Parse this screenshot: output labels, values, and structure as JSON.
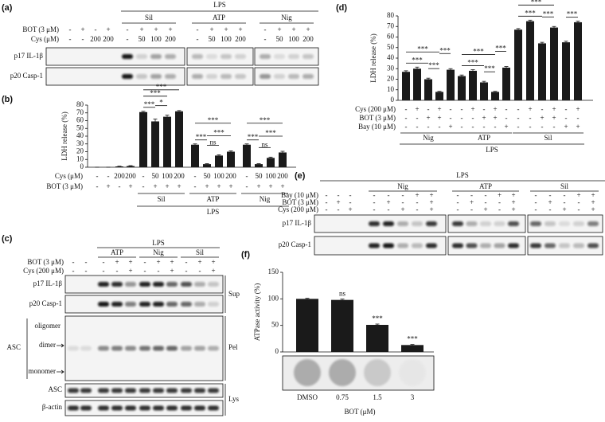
{
  "chart_data": [
    {
      "type": "bar",
      "panel": "(b)",
      "ylabel": "LDH release (%)",
      "color": "#1a1a1a",
      "values": [
        0,
        0,
        1,
        1.5,
        71,
        59,
        65,
        72,
        29,
        4,
        15,
        20,
        29,
        4,
        12,
        19
      ],
      "errors": [
        0,
        0,
        0.3,
        0.5,
        1,
        3,
        2,
        1,
        1,
        0.5,
        1,
        1,
        1,
        0.5,
        1,
        1.5
      ],
      "ylim": [
        0,
        80
      ],
      "yticks": [
        0,
        10,
        20,
        30,
        40,
        50,
        60,
        70,
        80
      ],
      "rows": [
        {
          "label": "Cys (μM)",
          "values": [
            "-",
            "-",
            "200",
            "200",
            "-",
            "50",
            "100",
            "200",
            "-",
            "50",
            "100",
            "200",
            "-",
            "50",
            "100",
            "200"
          ]
        },
        {
          "label": "BOT (3 μM)",
          "values": [
            "-",
            "+",
            "-",
            "+",
            "-",
            "+",
            "+",
            "+",
            "-",
            "+",
            "+",
            "+",
            "-",
            "+",
            "+",
            "+"
          ]
        }
      ],
      "groups": [
        {
          "label": "Sil",
          "from": 4,
          "to": 7
        },
        {
          "label": "ATP",
          "from": 8,
          "to": 11
        },
        {
          "label": "Nig",
          "from": 12,
          "to": 15
        }
      ],
      "super": {
        "label": "LPS",
        "from": 4,
        "to": 15
      },
      "significance": [
        {
          "label": "***",
          "from": 4,
          "to": 5
        },
        {
          "label": "*",
          "from": 5,
          "to": 6
        },
        {
          "label": "***",
          "from": 4,
          "to": 6
        },
        {
          "label": "***",
          "from": 4,
          "to": 7
        },
        {
          "label": "***",
          "from": 8,
          "to": 9
        },
        {
          "label": "ns",
          "from": 9,
          "to": 10
        },
        {
          "label": "***",
          "from": 9,
          "to": 11
        },
        {
          "label": "***",
          "from": 8,
          "to": 11
        },
        {
          "label": "***",
          "from": 12,
          "to": 13
        },
        {
          "label": "ns",
          "from": 13,
          "to": 14
        },
        {
          "label": "***",
          "from": 13,
          "to": 15
        },
        {
          "label": "***",
          "from": 12,
          "to": 15
        }
      ]
    },
    {
      "type": "bar",
      "panel": "(d)",
      "ylabel": "LDH release (%)",
      "color": "#1a1a1a",
      "values": [
        27,
        30,
        20,
        8,
        29,
        23,
        28,
        17,
        8,
        31,
        67,
        75,
        54,
        69,
        55,
        74
      ],
      "errors": [
        1,
        1.5,
        1,
        0.5,
        1,
        1,
        1,
        1,
        0.5,
        1,
        1,
        1,
        1,
        1,
        1,
        1
      ],
      "ylim": [
        0,
        80
      ],
      "yticks": [
        0,
        10,
        20,
        30,
        40,
        50,
        60,
        70,
        80
      ],
      "rows": [
        {
          "label": "Cys (200 μM)",
          "values": [
            "-",
            "+",
            "-",
            "+",
            "-",
            "-",
            "+",
            "-",
            "+",
            "-",
            "-",
            "+",
            "-",
            "+",
            "-",
            "+"
          ]
        },
        {
          "label": "BOT (3 μM)",
          "values": [
            "-",
            "-",
            "+",
            "+",
            "-",
            "-",
            "-",
            "+",
            "+",
            "-",
            "-",
            "-",
            "+",
            "+",
            "-",
            "-"
          ]
        },
        {
          "label": "Bay (10 μM)",
          "values": [
            "-",
            "-",
            "-",
            "-",
            "+",
            "-",
            "-",
            "-",
            "-",
            "+",
            "-",
            "-",
            "-",
            "-",
            "+",
            "+"
          ]
        }
      ],
      "groups": [
        {
          "label": "Nig",
          "from": 0,
          "to": 4
        },
        {
          "label": "ATP",
          "from": 5,
          "to": 9
        },
        {
          "label": "Sil",
          "from": 10,
          "to": 15
        }
      ],
      "super": {
        "label": "LPS",
        "from": 0,
        "to": 15
      },
      "significance": [
        {
          "label": "***",
          "from": 0,
          "to": 2
        },
        {
          "label": "***",
          "from": 2,
          "to": 3
        },
        {
          "label": "***",
          "from": 0,
          "to": 3
        },
        {
          "label": "***",
          "from": 3,
          "to": 4
        },
        {
          "label": "***",
          "from": 5,
          "to": 7
        },
        {
          "label": "***",
          "from": 7,
          "to": 8
        },
        {
          "label": "***",
          "from": 5,
          "to": 8
        },
        {
          "label": "***",
          "from": 8,
          "to": 9
        },
        {
          "label": "***",
          "from": 10,
          "to": 12
        },
        {
          "label": "***",
          "from": 12,
          "to": 13
        },
        {
          "label": "***",
          "from": 10,
          "to": 13
        },
        {
          "label": "***",
          "from": 14,
          "to": 15
        }
      ]
    },
    {
      "type": "bar",
      "panel": "(f)",
      "ylabel": "ATPase activity (%)",
      "xlabel": "BOT (μM)",
      "color": "#1a1a1a",
      "categories": [
        "DMSO",
        "0.75",
        "1.5",
        "3"
      ],
      "values": [
        100,
        98,
        51,
        13
      ],
      "errors": [
        1,
        1.5,
        1.5,
        1
      ],
      "ylim": [
        0,
        150
      ],
      "yticks": [
        0,
        50,
        100,
        150
      ],
      "significance": [
        {
          "label": "ns",
          "from": 1,
          "to": 1
        },
        {
          "label": "***",
          "from": 2,
          "to": 2
        },
        {
          "label": "***",
          "from": 3,
          "to": 3
        }
      ]
    }
  ],
  "blots": {
    "a": {
      "panel": "(a)",
      "super": {
        "label": "LPS",
        "from": 4,
        "to": 15
      },
      "groups": [
        {
          "label": "Sil",
          "from": 4,
          "to": 7
        },
        {
          "label": "ATP",
          "from": 8,
          "to": 11
        },
        {
          "label": "Nig",
          "from": 12,
          "to": 15
        }
      ],
      "rows": [
        {
          "label": "BOT (3 μM)",
          "values": [
            "-",
            "+",
            "-",
            "+",
            "-",
            "+",
            "+",
            "+",
            "-",
            "+",
            "+",
            "+",
            "-",
            "+",
            "+",
            "+"
          ]
        },
        {
          "label": "Cys (μM)",
          "values": [
            "-",
            "-",
            "200",
            "200",
            "-",
            "50",
            "100",
            "200",
            "-",
            "50",
            "100",
            "200",
            "-",
            "50",
            "100",
            "200"
          ]
        }
      ],
      "bands": [
        "p17 IL-1β",
        "p20 Casp-1"
      ]
    },
    "c": {
      "panel": "(c)",
      "super": {
        "label": "LPS",
        "from": 2,
        "to": 10
      },
      "groups": [
        {
          "label": "ATP",
          "from": 2,
          "to": 4
        },
        {
          "label": "Nig",
          "from": 5,
          "to": 7
        },
        {
          "label": "Sil",
          "from": 8,
          "to": 10
        }
      ],
      "rows": [
        {
          "label": "BOT (3 μM)",
          "values": [
            "-",
            "-",
            "-",
            "+",
            "+",
            "-",
            "+",
            "+",
            "-",
            "+",
            "+"
          ]
        },
        {
          "label": "Cys (200 μM)",
          "values": [
            "-",
            "-",
            "-",
            "-",
            "+",
            "-",
            "-",
            "+",
            "-",
            "-",
            "+"
          ]
        }
      ],
      "bands": [
        "p17 IL-1β",
        "p20 Casp-1",
        "ASC",
        "β-actin"
      ],
      "asc_forms": [
        "oligomer",
        "dimer",
        "monomer"
      ],
      "pellet_label": "ASC",
      "fractions": [
        "Sup",
        "Pel",
        "Lys"
      ]
    },
    "e": {
      "panel": "(e)",
      "super": {
        "label": "LPS",
        "from": 0,
        "to": 17
      },
      "groups": [
        {
          "label": "Nig",
          "from": 3,
          "to": 7
        },
        {
          "label": "ATP",
          "from": 8,
          "to": 12
        },
        {
          "label": "Sil",
          "from": 13,
          "to": 17
        }
      ],
      "rows": [
        {
          "label": "Bay (10 μM)",
          "values": [
            "-",
            "-",
            "-",
            "-",
            "-",
            "-",
            "+",
            "+",
            "-",
            "-",
            "-",
            "+",
            "+",
            "-",
            "-",
            "-",
            "+",
            "+"
          ]
        },
        {
          "label": "BOT (3 μM)",
          "values": [
            "-",
            "+",
            "-",
            "-",
            "+",
            "-",
            "-",
            "+",
            "-",
            "+",
            "-",
            "-",
            "+",
            "-",
            "+",
            "-",
            "-",
            "+"
          ]
        },
        {
          "label": "Cys (200 μM)",
          "values": [
            "-",
            "-",
            "+",
            "-",
            "-",
            "+",
            "-",
            "+",
            "-",
            "-",
            "+",
            "-",
            "+",
            "-",
            "-",
            "+",
            "-",
            "+"
          ]
        }
      ],
      "bands": [
        "p17 IL-1β",
        "p20 Casp-1"
      ]
    }
  }
}
